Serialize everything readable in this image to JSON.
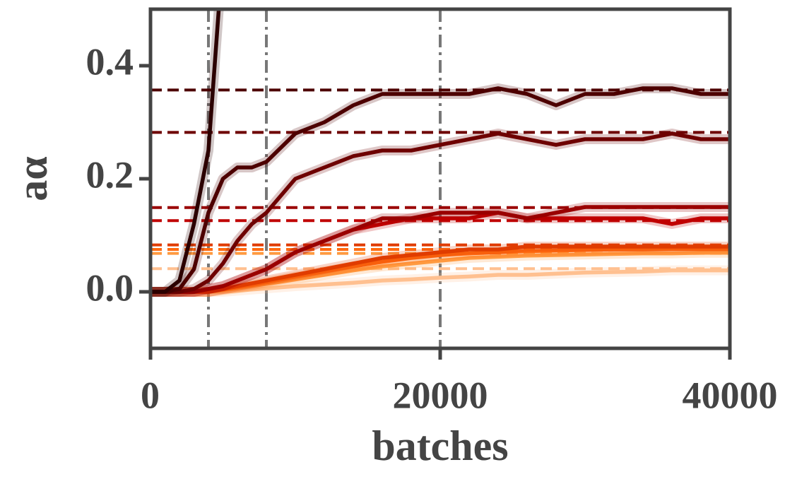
{
  "chart_data": {
    "type": "line",
    "xlabel": "batches",
    "ylabel": "aα",
    "xlim": [
      0,
      40000
    ],
    "ylim": [
      -0.1,
      0.5
    ],
    "xticks": [
      0,
      20000,
      40000
    ],
    "yticks": [
      {
        "value": 0,
        "label": "0.0"
      },
      0.2,
      0.4
    ],
    "vlines": [
      4000,
      8000,
      20000
    ],
    "x": [
      0,
      1000,
      2000,
      3000,
      4000,
      5000,
      6000,
      7000,
      8000,
      10000,
      12000,
      14000,
      16000,
      18000,
      20000,
      22000,
      24000,
      26000,
      28000,
      30000,
      32000,
      34000,
      36000,
      38000,
      40000
    ],
    "series": [
      {
        "color": "#2b0000",
        "target": null,
        "values": [
          0,
          0,
          0.02,
          0.12,
          0.25,
          0.6,
          null,
          null,
          null,
          null,
          null,
          null,
          null,
          null,
          null,
          null,
          null,
          null,
          null,
          null,
          null,
          null,
          null,
          null,
          null
        ]
      },
      {
        "color": "#4d0000",
        "target": 0.357,
        "values": [
          0,
          0,
          0.005,
          0.04,
          0.14,
          0.2,
          0.22,
          0.22,
          0.23,
          0.28,
          0.3,
          0.33,
          0.35,
          0.35,
          0.35,
          0.35,
          0.36,
          0.35,
          0.33,
          0.35,
          0.35,
          0.36,
          0.36,
          0.35,
          0.35
        ]
      },
      {
        "color": "#6e0000",
        "target": 0.282,
        "values": [
          0,
          0,
          0,
          0.005,
          0.02,
          0.05,
          0.09,
          0.12,
          0.14,
          0.2,
          0.22,
          0.24,
          0.25,
          0.25,
          0.26,
          0.27,
          0.28,
          0.27,
          0.26,
          0.27,
          0.27,
          0.27,
          0.28,
          0.27,
          0.27
        ]
      },
      {
        "color": "#9a0000",
        "target": 0.149,
        "values": [
          0,
          0,
          0,
          0,
          0.005,
          0.01,
          0.02,
          0.03,
          0.04,
          0.07,
          0.09,
          0.11,
          0.13,
          0.13,
          0.14,
          0.14,
          0.14,
          0.13,
          0.14,
          0.15,
          0.15,
          0.15,
          0.15,
          0.15,
          0.15
        ]
      },
      {
        "color": "#c00000",
        "target": 0.126,
        "values": [
          0,
          0,
          0,
          0,
          0.005,
          0.01,
          0.02,
          0.03,
          0.04,
          0.07,
          0.09,
          0.11,
          0.12,
          0.13,
          0.13,
          0.13,
          0.14,
          0.13,
          0.13,
          0.13,
          0.13,
          0.13,
          0.12,
          0.13,
          0.13
        ]
      },
      {
        "color": "#e03c00",
        "target": 0.083,
        "values": [
          0,
          0,
          0,
          0,
          0,
          0.005,
          0.01,
          0.015,
          0.02,
          0.03,
          0.04,
          0.05,
          0.06,
          0.065,
          0.07,
          0.075,
          0.075,
          0.08,
          0.08,
          0.08,
          0.08,
          0.08,
          0.08,
          0.08,
          0.08
        ]
      },
      {
        "color": "#ff6a10",
        "target": 0.075,
        "values": [
          0,
          0,
          0,
          0,
          0,
          0.004,
          0.008,
          0.012,
          0.017,
          0.027,
          0.036,
          0.045,
          0.053,
          0.06,
          0.065,
          0.068,
          0.07,
          0.072,
          0.073,
          0.074,
          0.075,
          0.075,
          0.076,
          0.076,
          0.076
        ]
      },
      {
        "color": "#ff9a40",
        "target": 0.068,
        "values": [
          0,
          0,
          0,
          0,
          0,
          0.003,
          0.006,
          0.01,
          0.014,
          0.022,
          0.03,
          0.038,
          0.045,
          0.05,
          0.055,
          0.06,
          0.062,
          0.064,
          0.065,
          0.066,
          0.067,
          0.068,
          0.068,
          0.069,
          0.069
        ]
      },
      {
        "color": "#ffc090",
        "target": 0.041,
        "values": [
          0,
          0,
          0,
          0,
          0,
          0,
          0.002,
          0.004,
          0.006,
          0.01,
          0.013,
          0.016,
          0.02,
          0.022,
          0.025,
          0.027,
          0.03,
          0.03,
          0.032,
          0.034,
          0.035,
          0.036,
          0.038,
          0.038,
          0.038
        ]
      }
    ]
  }
}
